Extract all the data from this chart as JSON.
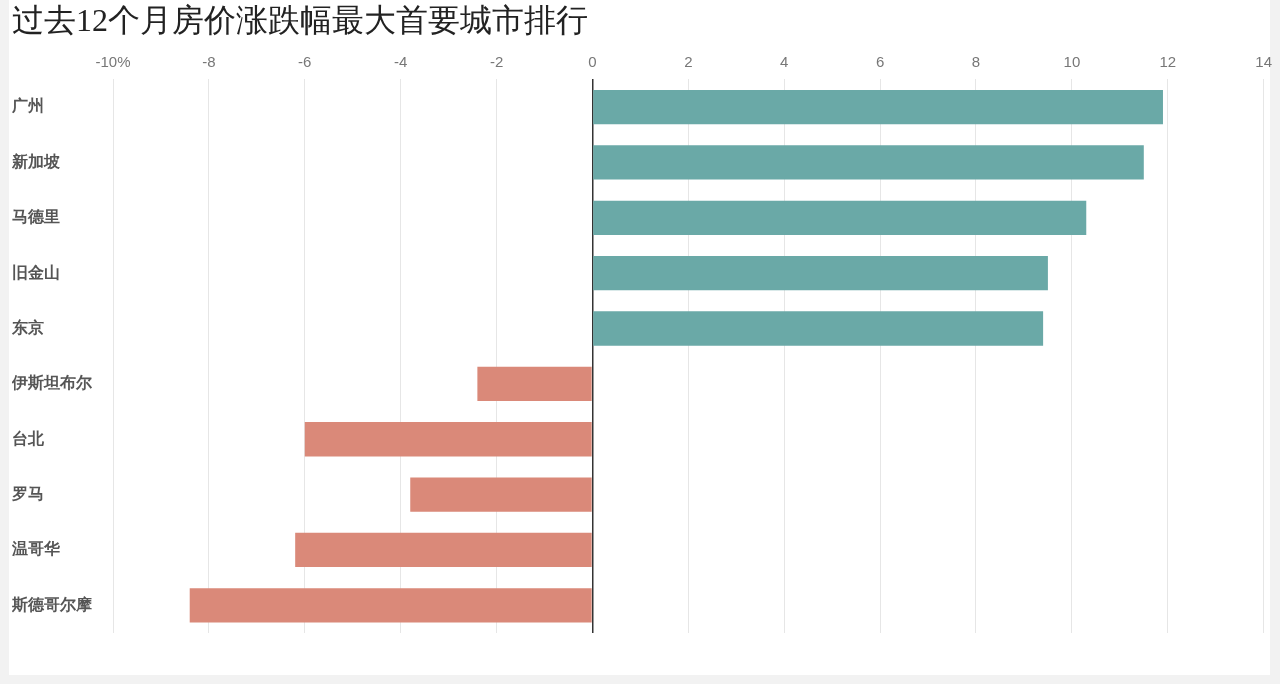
{
  "chart_data": {
    "type": "bar",
    "orientation": "horizontal",
    "title": "过去12个月房价涨跌幅最大首要城市排行",
    "categories": [
      "广州",
      "新加坡",
      "马德里",
      "旧金山",
      "东京",
      "伊斯坦布尔",
      "台北",
      "罗马",
      "温哥华",
      "斯德哥尔摩"
    ],
    "values": [
      11.9,
      11.5,
      10.3,
      9.5,
      9.4,
      -2.4,
      -6.0,
      -3.8,
      -6.2,
      -8.4
    ],
    "colors": [
      "#6aa9a7",
      "#6aa9a7",
      "#6aa9a7",
      "#6aa9a7",
      "#6aa9a7",
      "#da8979",
      "#da8979",
      "#da8979",
      "#da8979",
      "#da8979"
    ],
    "xlim": [
      -10,
      14
    ],
    "xticks": [
      {
        "value": -10,
        "label": "-10%"
      },
      -8,
      -6,
      -4,
      -2,
      0,
      2,
      4,
      6,
      8,
      10,
      12,
      14
    ],
    "grid": "x"
  }
}
